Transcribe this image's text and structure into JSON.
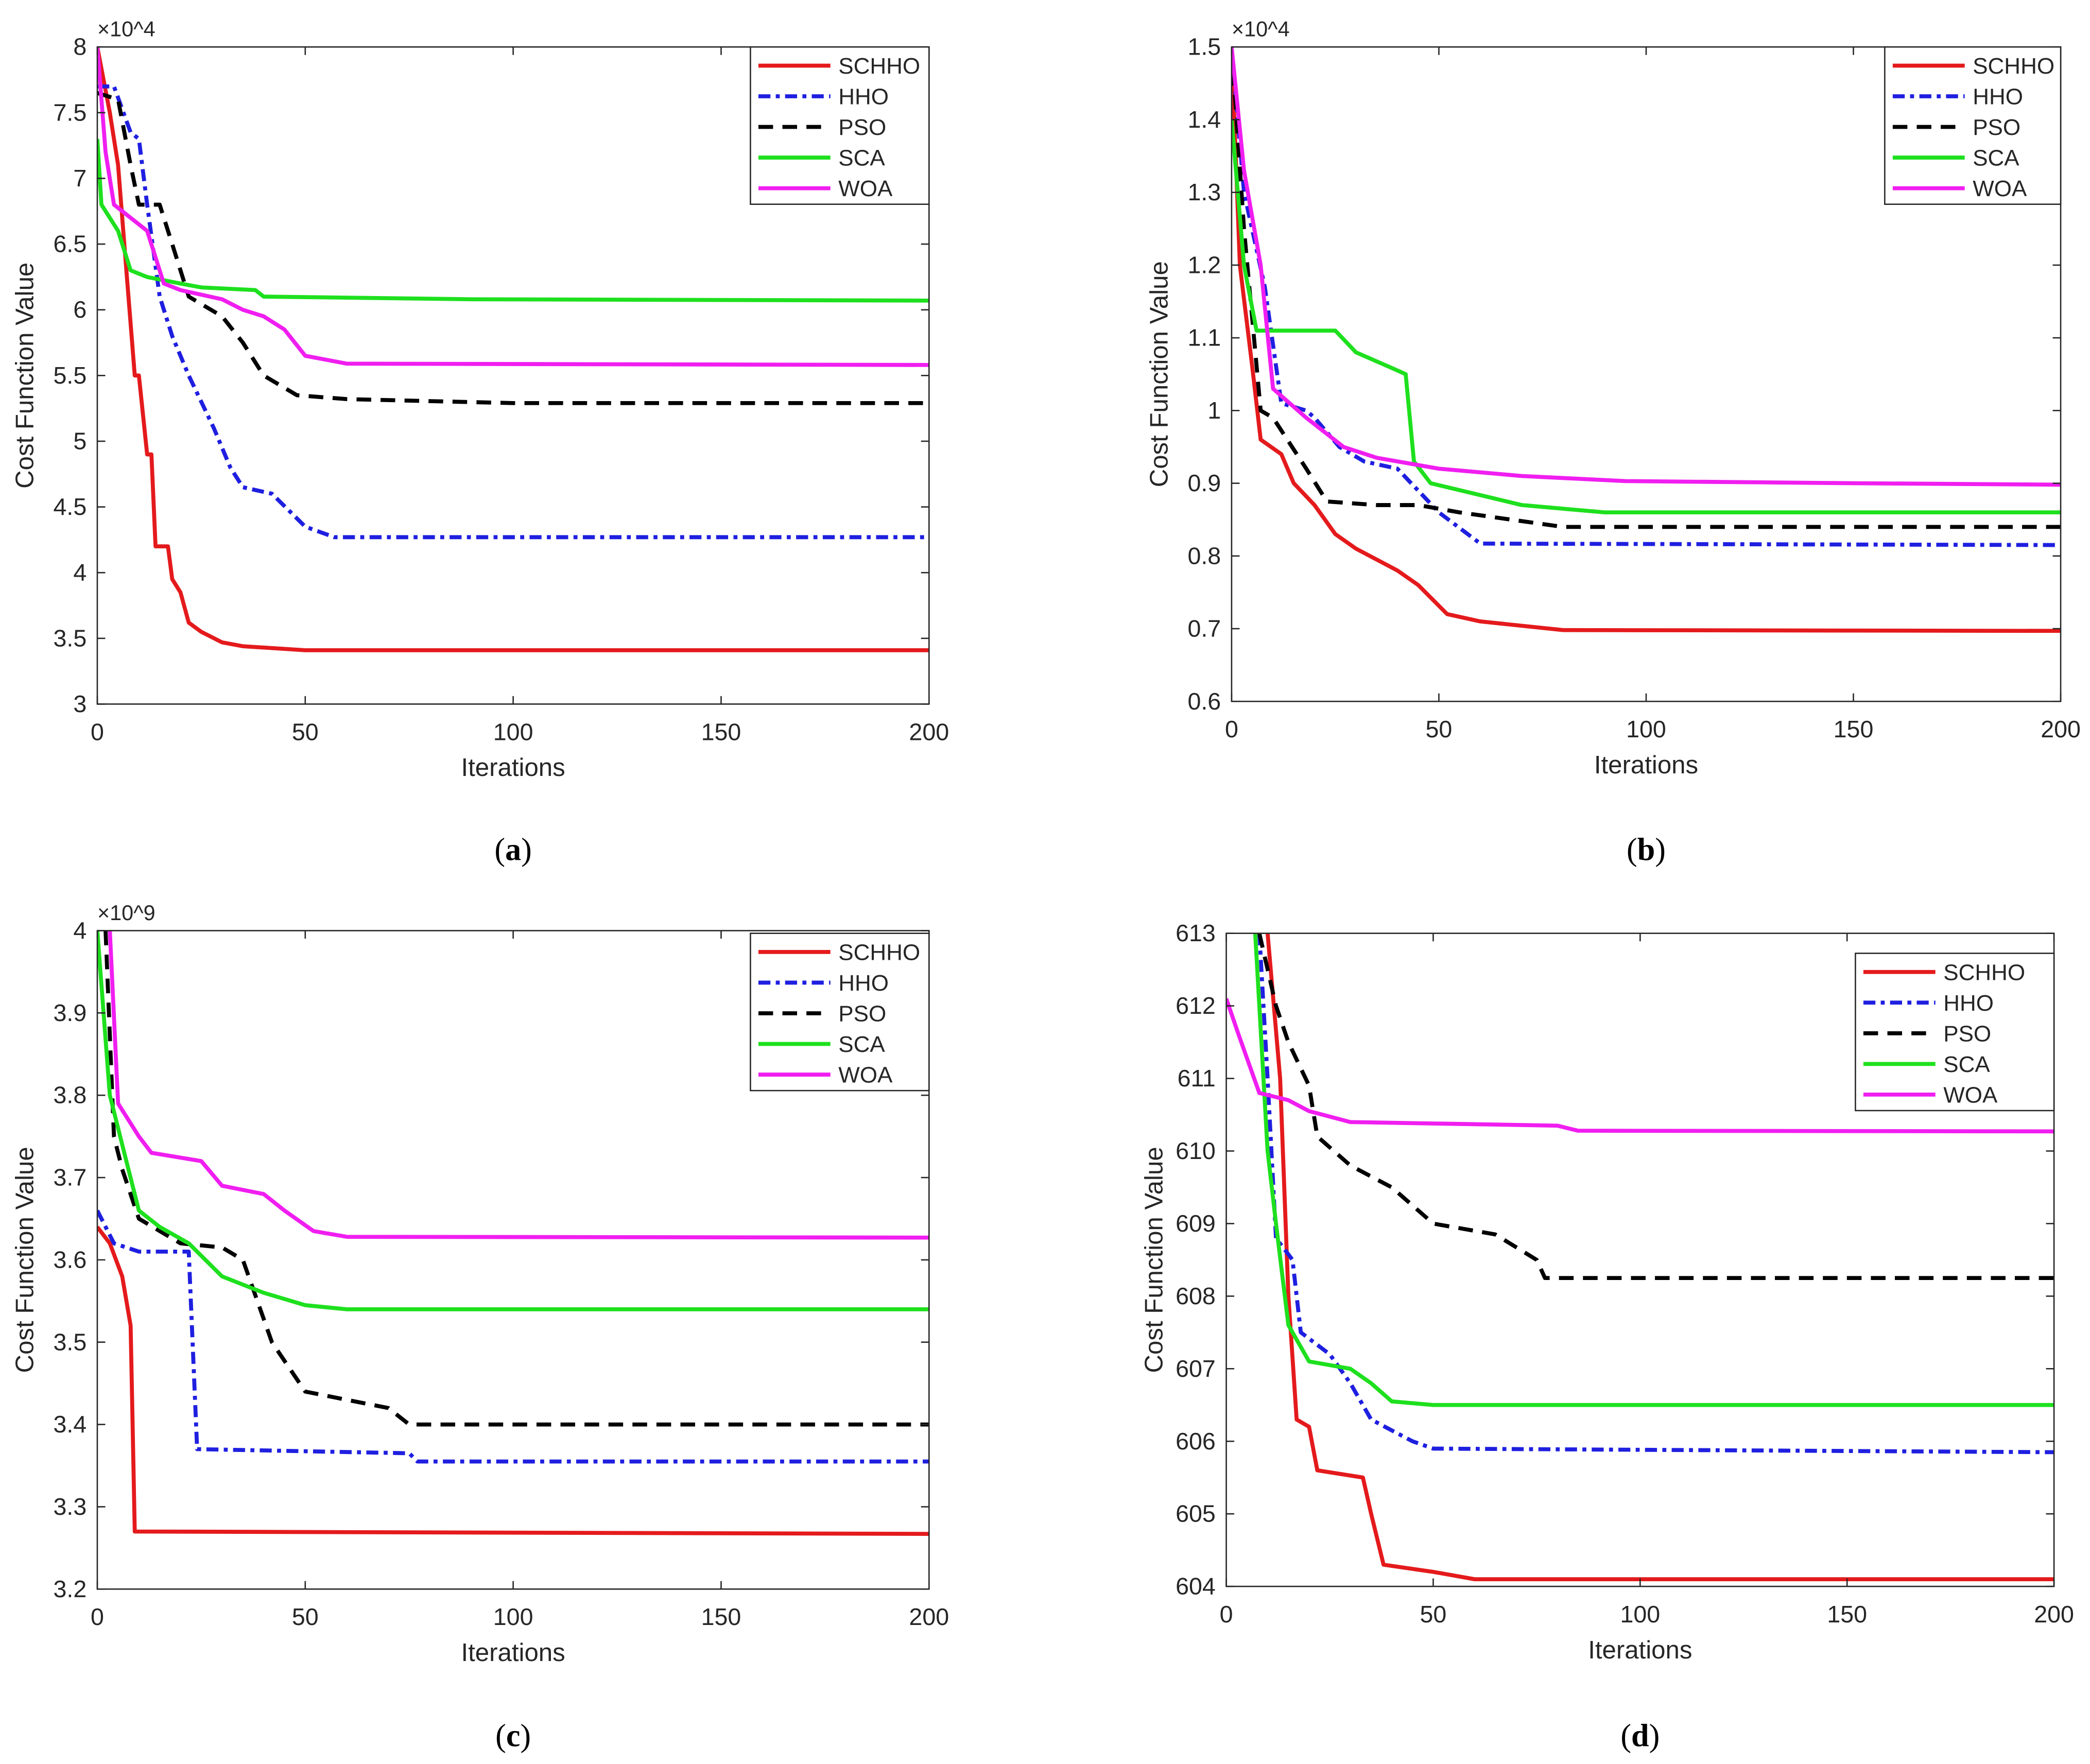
{
  "chart_data": [
    {
      "id": "a",
      "panel_label": "a",
      "type": "line",
      "xlabel": "Iterations",
      "ylabel": "Cost Function Value",
      "y_exponent": "×10^4",
      "xlim": [
        0,
        200
      ],
      "ylim": [
        3,
        8
      ],
      "xticks": [
        0,
        50,
        100,
        150,
        200
      ],
      "yticks": [
        3,
        3.5,
        4,
        4.5,
        5,
        5.5,
        6,
        6.5,
        7,
        7.5,
        8
      ],
      "grid": false,
      "legend": "top-right",
      "series": [
        {
          "name": "SCHHO",
          "points": [
            [
              0,
              8
            ],
            [
              3,
              7.5
            ],
            [
              5,
              7.1
            ],
            [
              7,
              6.3
            ],
            [
              9,
              5.5
            ],
            [
              10,
              5.5
            ],
            [
              12,
              4.9
            ],
            [
              13,
              4.9
            ],
            [
              14,
              4.2
            ],
            [
              17,
              4.2
            ],
            [
              18,
              3.95
            ],
            [
              20,
              3.85
            ],
            [
              22,
              3.62
            ],
            [
              25,
              3.55
            ],
            [
              30,
              3.47
            ],
            [
              35,
              3.44
            ],
            [
              50,
              3.41
            ],
            [
              200,
              3.41
            ]
          ]
        },
        {
          "name": "HHO",
          "points": [
            [
              0,
              7.7
            ],
            [
              4,
              7.7
            ],
            [
              8,
              7.35
            ],
            [
              10,
              7.3
            ],
            [
              12,
              6.8
            ],
            [
              15,
              6.1
            ],
            [
              18,
              5.8
            ],
            [
              22,
              5.5
            ],
            [
              25,
              5.3
            ],
            [
              28,
              5.1
            ],
            [
              32,
              4.8
            ],
            [
              35,
              4.65
            ],
            [
              42,
              4.6
            ],
            [
              50,
              4.35
            ],
            [
              57,
              4.27
            ],
            [
              200,
              4.27
            ]
          ]
        },
        {
          "name": "PSO",
          "points": [
            [
              0,
              7.65
            ],
            [
              5,
              7.6
            ],
            [
              8,
              7.1
            ],
            [
              10,
              6.8
            ],
            [
              15,
              6.8
            ],
            [
              18,
              6.5
            ],
            [
              22,
              6.1
            ],
            [
              30,
              5.95
            ],
            [
              35,
              5.75
            ],
            [
              40,
              5.5
            ],
            [
              48,
              5.35
            ],
            [
              60,
              5.32
            ],
            [
              100,
              5.29
            ],
            [
              200,
              5.29
            ]
          ]
        },
        {
          "name": "SCA",
          "points": [
            [
              0,
              7.3
            ],
            [
              1,
              6.8
            ],
            [
              5,
              6.6
            ],
            [
              8,
              6.3
            ],
            [
              12,
              6.25
            ],
            [
              20,
              6.2
            ],
            [
              25,
              6.17
            ],
            [
              38,
              6.15
            ],
            [
              40,
              6.1
            ],
            [
              90,
              6.08
            ],
            [
              200,
              6.07
            ]
          ]
        },
        {
          "name": "WOA",
          "points": [
            [
              0,
              8
            ],
            [
              2,
              7.2
            ],
            [
              4,
              6.8
            ],
            [
              8,
              6.7
            ],
            [
              12,
              6.6
            ],
            [
              16,
              6.2
            ],
            [
              20,
              6.15
            ],
            [
              30,
              6.08
            ],
            [
              35,
              6.0
            ],
            [
              40,
              5.95
            ],
            [
              45,
              5.85
            ],
            [
              50,
              5.65
            ],
            [
              60,
              5.59
            ],
            [
              200,
              5.58
            ]
          ]
        }
      ]
    },
    {
      "id": "b",
      "panel_label": "b",
      "type": "line",
      "xlabel": "Iterations",
      "ylabel": "Cost Function Value",
      "y_exponent": "×10^4",
      "xlim": [
        0,
        200
      ],
      "ylim": [
        0.6,
        1.5
      ],
      "xticks": [
        0,
        50,
        100,
        150,
        200
      ],
      "yticks": [
        0.6,
        0.7,
        0.8,
        0.9,
        1,
        1.1,
        1.2,
        1.3,
        1.4,
        1.5
      ],
      "grid": false,
      "legend": "top-right",
      "series": [
        {
          "name": "SCHHO",
          "points": [
            [
              0,
              1.5
            ],
            [
              2,
              1.2
            ],
            [
              5,
              1.06
            ],
            [
              7,
              0.96
            ],
            [
              12,
              0.94
            ],
            [
              15,
              0.9
            ],
            [
              20,
              0.87
            ],
            [
              25,
              0.83
            ],
            [
              30,
              0.81
            ],
            [
              40,
              0.78
            ],
            [
              45,
              0.76
            ],
            [
              52,
              0.72
            ],
            [
              60,
              0.71
            ],
            [
              80,
              0.698
            ],
            [
              200,
              0.697
            ]
          ]
        },
        {
          "name": "HHO",
          "points": [
            [
              0,
              1.5
            ],
            [
              3,
              1.3
            ],
            [
              8,
              1.17
            ],
            [
              12,
              1.01
            ],
            [
              18,
              1.0
            ],
            [
              20,
              0.99
            ],
            [
              26,
              0.95
            ],
            [
              32,
              0.93
            ],
            [
              40,
              0.92
            ],
            [
              50,
              0.86
            ],
            [
              60,
              0.817
            ],
            [
              200,
              0.815
            ]
          ]
        },
        {
          "name": "PSO",
          "points": [
            [
              0,
              1.5
            ],
            [
              3,
              1.25
            ],
            [
              7,
              1.0
            ],
            [
              10,
              0.99
            ],
            [
              18,
              0.92
            ],
            [
              23,
              0.875
            ],
            [
              35,
              0.87
            ],
            [
              45,
              0.87
            ],
            [
              55,
              0.86
            ],
            [
              80,
              0.84
            ],
            [
              200,
              0.84
            ]
          ]
        },
        {
          "name": "SCA",
          "points": [
            [
              0,
              1.4
            ],
            [
              3,
              1.2
            ],
            [
              6,
              1.11
            ],
            [
              25,
              1.11
            ],
            [
              30,
              1.08
            ],
            [
              38,
              1.06
            ],
            [
              42,
              1.05
            ],
            [
              44,
              0.93
            ],
            [
              48,
              0.9
            ],
            [
              70,
              0.87
            ],
            [
              90,
              0.86
            ],
            [
              200,
              0.86
            ]
          ]
        },
        {
          "name": "WOA",
          "points": [
            [
              0,
              1.5
            ],
            [
              3,
              1.33
            ],
            [
              7,
              1.2
            ],
            [
              10,
              1.03
            ],
            [
              18,
              0.99
            ],
            [
              27,
              0.95
            ],
            [
              35,
              0.935
            ],
            [
              50,
              0.92
            ],
            [
              70,
              0.91
            ],
            [
              95,
              0.903
            ],
            [
              150,
              0.9
            ],
            [
              200,
              0.898
            ]
          ]
        }
      ]
    },
    {
      "id": "c",
      "panel_label": "c",
      "type": "line",
      "xlabel": "Iterations",
      "ylabel": "Cost Function Value",
      "y_exponent": "×10^9",
      "xlim": [
        0,
        200
      ],
      "ylim": [
        3.2,
        4
      ],
      "xticks": [
        0,
        50,
        100,
        150,
        200
      ],
      "yticks": [
        3.2,
        3.3,
        3.4,
        3.5,
        3.6,
        3.7,
        3.8,
        3.9,
        4
      ],
      "grid": false,
      "legend": "top-right",
      "series": [
        {
          "name": "SCHHO",
          "points": [
            [
              0,
              3.64
            ],
            [
              3,
              3.62
            ],
            [
              6,
              3.58
            ],
            [
              8,
              3.52
            ],
            [
              9,
              3.27
            ],
            [
              200,
              3.267
            ]
          ]
        },
        {
          "name": "HHO",
          "points": [
            [
              0,
              3.66
            ],
            [
              4,
              3.62
            ],
            [
              10,
              3.61
            ],
            [
              22,
              3.61
            ],
            [
              24,
              3.37
            ],
            [
              75,
              3.365
            ],
            [
              77,
              3.355
            ],
            [
              200,
              3.355
            ]
          ]
        },
        {
          "name": "PSO",
          "points": [
            [
              2,
              4.0
            ],
            [
              4,
              3.75
            ],
            [
              6,
              3.71
            ],
            [
              10,
              3.65
            ],
            [
              20,
              3.62
            ],
            [
              30,
              3.615
            ],
            [
              35,
              3.6
            ],
            [
              42,
              3.5
            ],
            [
              50,
              3.44
            ],
            [
              60,
              3.43
            ],
            [
              70,
              3.42
            ],
            [
              75,
              3.4
            ],
            [
              200,
              3.4
            ]
          ]
        },
        {
          "name": "SCA",
          "points": [
            [
              0,
              4.0
            ],
            [
              3,
              3.8
            ],
            [
              7,
              3.72
            ],
            [
              10,
              3.66
            ],
            [
              15,
              3.64
            ],
            [
              22,
              3.62
            ],
            [
              30,
              3.58
            ],
            [
              40,
              3.56
            ],
            [
              50,
              3.545
            ],
            [
              60,
              3.54
            ],
            [
              200,
              3.54
            ]
          ]
        },
        {
          "name": "WOA",
          "points": [
            [
              3,
              4.0
            ],
            [
              5,
              3.79
            ],
            [
              10,
              3.75
            ],
            [
              13,
              3.73
            ],
            [
              25,
              3.72
            ],
            [
              30,
              3.69
            ],
            [
              40,
              3.68
            ],
            [
              45,
              3.66
            ],
            [
              52,
              3.635
            ],
            [
              60,
              3.628
            ],
            [
              200,
              3.627
            ]
          ]
        }
      ]
    },
    {
      "id": "d",
      "panel_label": "d",
      "type": "line",
      "xlabel": "Iterations",
      "ylabel": "Cost Function Value",
      "y_exponent": "",
      "xlim": [
        0,
        200
      ],
      "ylim": [
        604,
        613
      ],
      "xticks": [
        0,
        50,
        100,
        150,
        200
      ],
      "yticks": [
        604,
        605,
        606,
        607,
        608,
        609,
        610,
        611,
        612,
        613
      ],
      "grid": false,
      "legend": "top-right",
      "series": [
        {
          "name": "SCHHO",
          "points": [
            [
              10,
              613
            ],
            [
              13,
              611
            ],
            [
              15,
              608
            ],
            [
              17,
              606.3
            ],
            [
              20,
              606.2
            ],
            [
              22,
              605.6
            ],
            [
              33,
              605.5
            ],
            [
              35,
              605
            ],
            [
              38,
              604.3
            ],
            [
              50,
              604.2
            ],
            [
              60,
              604.1
            ],
            [
              200,
              604.1
            ]
          ]
        },
        {
          "name": "HHO",
          "points": [
            [
              8,
              613
            ],
            [
              10,
              611
            ],
            [
              12,
              608.8
            ],
            [
              16,
              608.5
            ],
            [
              18,
              607.5
            ],
            [
              25,
              607.2
            ],
            [
              30,
              606.8
            ],
            [
              35,
              606.3
            ],
            [
              45,
              606.0
            ],
            [
              50,
              605.9
            ],
            [
              200,
              605.85
            ]
          ]
        },
        {
          "name": "PSO",
          "points": [
            [
              8,
              613
            ],
            [
              12,
              612
            ],
            [
              15,
              611.5
            ],
            [
              20,
              610.9
            ],
            [
              22,
              610.2
            ],
            [
              30,
              609.8
            ],
            [
              40,
              609.5
            ],
            [
              50,
              609.0
            ],
            [
              65,
              608.85
            ],
            [
              75,
              608.5
            ],
            [
              77,
              608.25
            ],
            [
              200,
              608.25
            ]
          ]
        },
        {
          "name": "SCA",
          "points": [
            [
              7,
              613
            ],
            [
              10,
              610
            ],
            [
              12,
              609
            ],
            [
              15,
              607.6
            ],
            [
              20,
              607.1
            ],
            [
              30,
              607.0
            ],
            [
              35,
              606.8
            ],
            [
              40,
              606.55
            ],
            [
              50,
              606.5
            ],
            [
              200,
              606.5
            ]
          ]
        },
        {
          "name": "WOA",
          "points": [
            [
              0,
              612.1
            ],
            [
              3,
              611.6
            ],
            [
              8,
              610.8
            ],
            [
              15,
              610.7
            ],
            [
              20,
              610.55
            ],
            [
              30,
              610.4
            ],
            [
              80,
              610.35
            ],
            [
              85,
              610.28
            ],
            [
              200,
              610.27
            ]
          ]
        }
      ]
    }
  ],
  "series_styles": {
    "SCHHO": {
      "color": "#e41a1c",
      "dash": "solid"
    },
    "HHO": {
      "color": "#1f1fe0",
      "dash": "dash-dot"
    },
    "PSO": {
      "color": "#000000",
      "dash": "dashed"
    },
    "SCA": {
      "color": "#1ee01e",
      "dash": "solid"
    },
    "WOA": {
      "color": "#f01ef0",
      "dash": "solid"
    }
  }
}
